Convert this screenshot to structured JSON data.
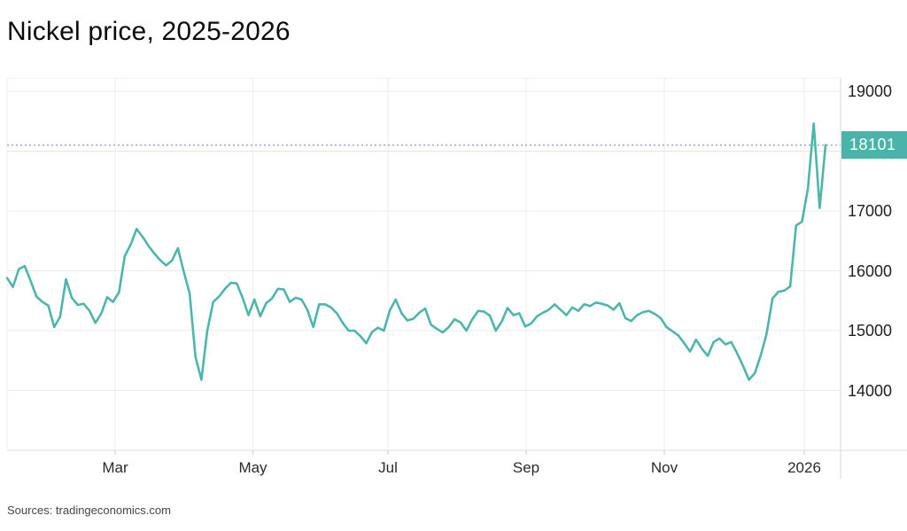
{
  "page": {
    "title": "Nickel price, 2025-2026",
    "source_note": "Sources: tradingeconomics.com"
  },
  "price_badge": {
    "value": "18101",
    "bg_color": "#4bb4aa",
    "text_color": "#ffffff"
  },
  "chart_data": {
    "type": "line",
    "title": "Nickel price, 2025-2026",
    "x_tick_labels": [
      "Mar",
      "May",
      "Jul",
      "Sep",
      "Nov",
      "2026"
    ],
    "y_tick_labels": [
      "19000",
      "17000",
      "16000",
      "15000",
      "14000"
    ],
    "y_tick_values": [
      19000,
      17000,
      16000,
      15000,
      14000
    ],
    "y_gridline_values": [
      19000,
      18000,
      17000,
      16000,
      15000,
      14000
    ],
    "ylim": [
      13000,
      19220
    ],
    "x_range": "Jan 2025 to Jan 2026",
    "current_value": 18101,
    "legend": "none",
    "grid": "on",
    "values": [
      15880,
      15730,
      16030,
      16080,
      15830,
      15570,
      15480,
      15420,
      15060,
      15230,
      15860,
      15550,
      15430,
      15450,
      15330,
      15130,
      15290,
      15560,
      15480,
      15640,
      16250,
      16440,
      16700,
      16570,
      16420,
      16290,
      16180,
      16090,
      16170,
      16380,
      15990,
      15620,
      14560,
      14180,
      15000,
      15480,
      15570,
      15700,
      15800,
      15790,
      15550,
      15260,
      15520,
      15240,
      15460,
      15540,
      15700,
      15690,
      15480,
      15550,
      15520,
      15350,
      15060,
      15440,
      15440,
      15390,
      15290,
      15130,
      15000,
      15000,
      14910,
      14790,
      14980,
      15050,
      15000,
      15340,
      15520,
      15290,
      15170,
      15200,
      15300,
      15370,
      15100,
      15030,
      14970,
      15060,
      15190,
      15140,
      15000,
      15190,
      15330,
      15320,
      15250,
      15000,
      15150,
      15380,
      15260,
      15290,
      15070,
      15120,
      15240,
      15300,
      15350,
      15440,
      15350,
      15260,
      15390,
      15330,
      15440,
      15410,
      15470,
      15450,
      15420,
      15350,
      15460,
      15210,
      15160,
      15260,
      15310,
      15330,
      15280,
      15210,
      15060,
      14990,
      14920,
      14790,
      14650,
      14850,
      14700,
      14580,
      14810,
      14870,
      14770,
      14810,
      14620,
      14410,
      14180,
      14290,
      14590,
      14950,
      15540,
      15650,
      15670,
      15740,
      16760,
      16820,
      17370,
      18460,
      17050,
      18101
    ],
    "line_color": "#4db6ac",
    "dotted_line_color": "#95a3d0",
    "grid_color": "#ebebeb",
    "prev_level_line_color": "#f2e0e0",
    "axis_line_color": "#dedede"
  }
}
